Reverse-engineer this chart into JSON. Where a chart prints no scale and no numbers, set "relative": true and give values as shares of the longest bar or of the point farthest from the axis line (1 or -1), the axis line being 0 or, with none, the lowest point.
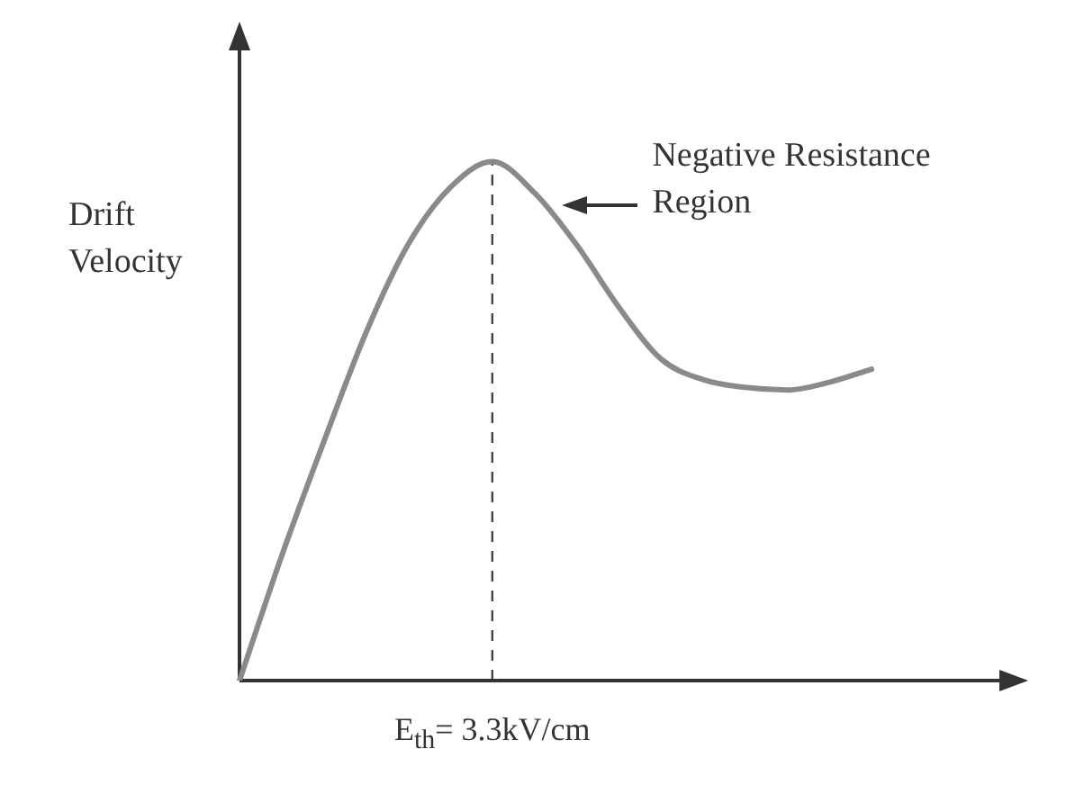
{
  "chart_data": {
    "type": "line",
    "relative": true,
    "ylabel": "Drift Velocity",
    "categories": [
      null,
      null,
      null,
      null,
      null,
      null,
      null,
      null,
      null,
      null,
      null,
      null,
      null,
      null,
      null,
      null
    ],
    "series": [
      {
        "color": "#8a8a8a",
        "values": [
          0,
          0.24,
          0.46,
          0.67,
          0.84,
          0.95,
          1,
          0.94,
          0.84,
          0.72,
          0.62,
          0.58,
          0.565,
          0.56,
          0.575,
          0.6
        ]
      }
    ],
    "annotations": [
      "E$_{th}$= 3.3kV/cm",
      "Negative Resistance Region"
    ],
    "legend": false,
    "marker": "none",
    "line_style": "solid"
  }
}
